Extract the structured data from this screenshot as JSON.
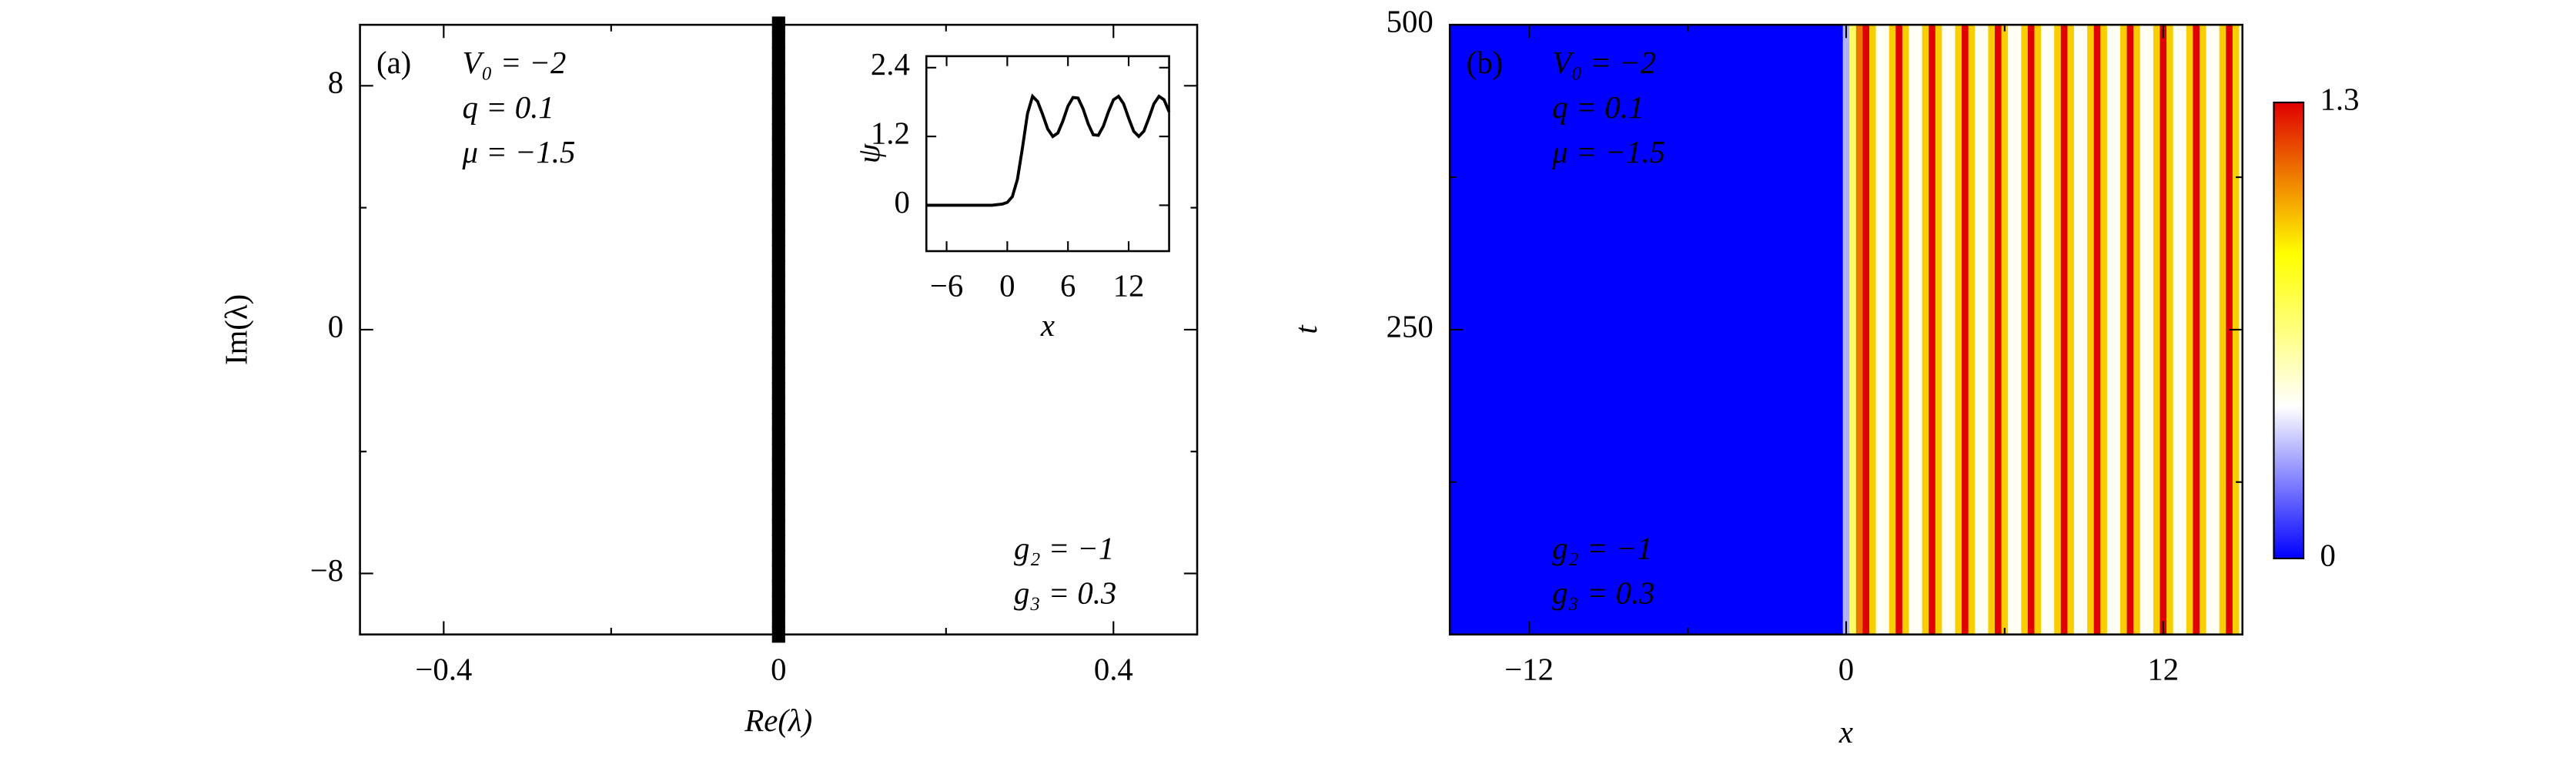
{
  "chart_data": [
    {
      "type": "scatter",
      "label": "(a)",
      "params": [
        "V₀ = −2",
        "q = 0.1",
        "μ = −1.5"
      ],
      "params_lower": [
        "g₂ = −1",
        "g₃ = 0.3"
      ],
      "xlabel": "Re(λ)",
      "ylabel": "Im(λ)",
      "color": "#000000",
      "xlim": [
        -0.5,
        0.5
      ],
      "ylim": [
        -10,
        10
      ],
      "xticks": [
        {
          "value": -0.4,
          "label": "−0.4"
        },
        0,
        0.4
      ],
      "xminor": [
        -0.2,
        0.2
      ],
      "yticks": [
        {
          "value": -8,
          "label": "−8"
        },
        0,
        8
      ],
      "yminor": [
        -4,
        4
      ],
      "x": [
        0,
        0,
        0,
        0,
        0,
        0,
        0,
        0,
        0,
        0,
        0,
        0,
        0,
        0,
        0,
        0,
        0,
        0,
        0,
        0,
        0,
        0,
        0,
        0,
        0,
        0,
        0,
        0,
        0,
        0,
        0,
        0,
        0,
        0,
        0,
        0,
        0,
        0,
        0,
        0,
        0
      ],
      "y": [
        -10,
        -9.5,
        -9,
        -8.5,
        -8,
        -7.5,
        -7,
        -6.5,
        -6,
        -5.5,
        -5,
        -4.5,
        -4,
        -3.5,
        -3,
        -2.5,
        -2,
        -1.5,
        -1,
        -0.5,
        0,
        0.5,
        1,
        1.5,
        2,
        2.5,
        3,
        3.5,
        4,
        4.5,
        5,
        5.5,
        6,
        6.5,
        7,
        7.5,
        8,
        8.5,
        9,
        9.5,
        10
      ],
      "inset": {
        "type": "line",
        "xlabel": "x",
        "ylabel": "ψ",
        "color": "#000000",
        "xlim": [
          -8,
          16
        ],
        "ylim": [
          -0.8,
          2.6
        ],
        "xticks": [
          {
            "value": -6,
            "label": "−6"
          },
          0,
          6,
          12
        ],
        "yticks": [
          0,
          1.2,
          2.4
        ],
        "x": [
          -8,
          -7.5,
          -7,
          -6.5,
          -6,
          -5.5,
          -5,
          -4.5,
          -4,
          -3.5,
          -3,
          -2.5,
          -2,
          -1.5,
          -1,
          -0.5,
          0,
          0.5,
          1,
          1.5,
          2,
          2.5,
          3,
          3.5,
          4,
          4.5,
          5,
          5.5,
          6,
          6.5,
          7,
          7.5,
          8,
          8.5,
          9,
          9.5,
          10,
          10.5,
          11,
          11.5,
          12,
          12.5,
          13,
          13.5,
          14,
          14.5,
          15,
          15.5,
          16
        ],
        "values": [
          0,
          0,
          0,
          0,
          0,
          0,
          0,
          0,
          0,
          0,
          0,
          0,
          0,
          0,
          0.01,
          0.02,
          0.05,
          0.15,
          0.45,
          1.0,
          1.6,
          1.9,
          1.81,
          1.58,
          1.33,
          1.2,
          1.26,
          1.47,
          1.73,
          1.88,
          1.87,
          1.68,
          1.42,
          1.23,
          1.22,
          1.38,
          1.63,
          1.84,
          1.9,
          1.77,
          1.52,
          1.29,
          1.2,
          1.29,
          1.52,
          1.77,
          1.9,
          1.84,
          1.63
        ]
      }
    },
    {
      "type": "heatmap",
      "label": "(b)",
      "params": [
        "V₀ = −2",
        "q = 0.1",
        "μ = −1.5"
      ],
      "params_lower": [
        "g₂ = −1",
        "g₃ = 0.3"
      ],
      "xlabel": "x",
      "ylabel": "t",
      "xlim": [
        -15,
        15
      ],
      "ylim": [
        0,
        500
      ],
      "xticks": [
        {
          "value": -12,
          "label": "−12"
        },
        0,
        12
      ],
      "xminor": [
        -6,
        6
      ],
      "yticks": [
        250,
        500
      ],
      "yminor": [
        125,
        375
      ],
      "clim": [
        0,
        1.3
      ],
      "cticks": [
        0,
        1.3
      ],
      "colormap": [
        "#0000ff",
        "#ffffff",
        "#ffff00",
        "#e00000"
      ],
      "x": [
        -15,
        -0.25,
        0,
        0.25,
        0.5,
        0.75,
        1,
        1.25,
        1.5,
        1.75,
        2,
        2.25,
        2.5,
        2.75,
        3,
        3.25,
        3.5,
        3.75,
        4,
        4.25,
        4.5,
        4.75,
        5,
        5.25,
        5.5,
        5.75,
        6,
        6.25,
        6.5,
        6.75,
        7,
        7.25,
        7.5,
        7.75,
        8,
        8.25,
        8.5,
        8.75,
        9,
        9.25,
        9.5,
        9.75,
        10,
        10.25,
        10.5,
        10.75,
        11,
        11.25,
        11.5,
        11.75,
        12,
        12.25,
        12.5,
        12.75,
        13,
        13.25,
        13.5,
        13.75,
        14,
        14.25,
        14.5,
        14.75,
        15
      ],
      "z": [
        0,
        0,
        0.3,
        0.7,
        1.1,
        1.3,
        0.95,
        0.45,
        0.45,
        0.95,
        1.3,
        0.95,
        0.45,
        0.45,
        0.95,
        1.3,
        0.95,
        0.45,
        0.45,
        0.95,
        1.3,
        0.95,
        0.45,
        0.45,
        0.95,
        1.3,
        0.95,
        0.45,
        0.45,
        0.95,
        1.3,
        0.95,
        0.45,
        0.45,
        0.95,
        1.3,
        0.95,
        0.45,
        0.45,
        0.95,
        1.3,
        0.95,
        0.45,
        0.45,
        0.95,
        1.3,
        0.95,
        0.45,
        0.45,
        0.95,
        1.3,
        0.95,
        0.45,
        0.45,
        0.95,
        1.3,
        0.95,
        0.45,
        0.45,
        0.95,
        1.3,
        0.95,
        0.45
      ]
    }
  ]
}
